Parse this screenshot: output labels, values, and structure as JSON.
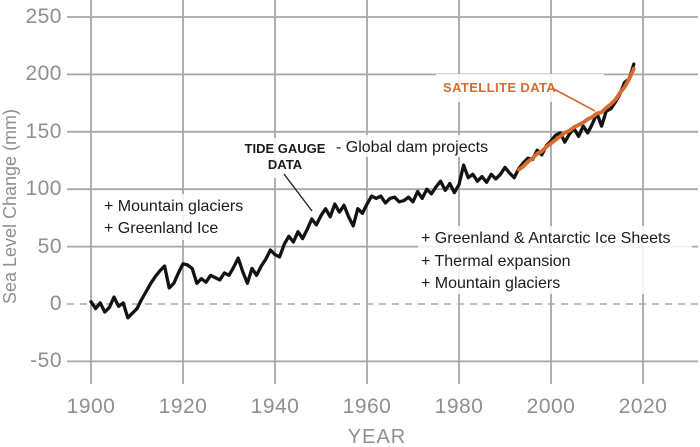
{
  "chart_data": {
    "type": "line",
    "title": "",
    "xlabel": "YEAR",
    "ylabel": "Sea Level Change (mm)",
    "x_ticks": [
      1900,
      1920,
      1940,
      1960,
      1980,
      2000,
      2020
    ],
    "y_ticks": [
      -50,
      0,
      50,
      100,
      150,
      200,
      250
    ],
    "xlim": [
      1895,
      2032
    ],
    "ylim": [
      -70,
      265
    ],
    "grid": true,
    "zero_baseline_dashed": true,
    "colors": {
      "tide_gauge": "#121212",
      "satellite": "#D96A2E",
      "gridline": "#a7a7a7",
      "zero_line": "#b5b5b5",
      "tick_text": "#8f8f8f",
      "annotation_text": "#1b1b1b"
    },
    "series": [
      {
        "name": "TIDE GAUGE DATA",
        "color": "#121212",
        "start_year": 1900,
        "values": [
          2,
          -4,
          1,
          -7,
          -3,
          6,
          -2,
          1,
          -12,
          -8,
          -4,
          4,
          11,
          18,
          24,
          29,
          33,
          14,
          18,
          27,
          35,
          34,
          31,
          18,
          22,
          19,
          25,
          23,
          21,
          27,
          25,
          32,
          40,
          28,
          18,
          31,
          25,
          33,
          39,
          47,
          43,
          41,
          52,
          59,
          54,
          63,
          57,
          65,
          74,
          69,
          77,
          83,
          76,
          87,
          80,
          86,
          76,
          68,
          83,
          79,
          87,
          94,
          92,
          94,
          88,
          92,
          93,
          89,
          90,
          93,
          89,
          98,
          92,
          100,
          96,
          102,
          107,
          99,
          105,
          97,
          104,
          121,
          110,
          113,
          107,
          111,
          106,
          113,
          109,
          113,
          119,
          114,
          110,
          118,
          123,
          127,
          126,
          134,
          130,
          138,
          142,
          147,
          149,
          141,
          148,
          153,
          146,
          155,
          149,
          157,
          166,
          155,
          168,
          170,
          176,
          183,
          193,
          196,
          209
        ]
      },
      {
        "name": "SATELLITE DATA",
        "color": "#D96A2E",
        "start_year": 1993,
        "values": [
          117,
          120,
          124,
          127,
          131,
          133,
          137,
          140,
          143,
          146,
          149,
          151,
          154,
          156,
          158,
          161,
          163,
          166,
          167,
          171,
          174,
          178,
          184,
          189,
          196,
          205
        ]
      }
    ],
    "annotations": {
      "tide_gauge": {
        "text": "TIDE GAUGE\nDATA"
      },
      "satellite": {
        "text": "SATELLITE DATA",
        "color": "#D96A2E"
      },
      "dam": {
        "text": "- Global dam projects"
      },
      "early_drivers": {
        "text": "+ Mountain glaciers\n+ Greenland Ice"
      },
      "modern_drivers": {
        "text": "+ Greenland & Antarctic Ice Sheets\n+ Thermal expansion\n+ Mountain glaciers"
      }
    }
  }
}
